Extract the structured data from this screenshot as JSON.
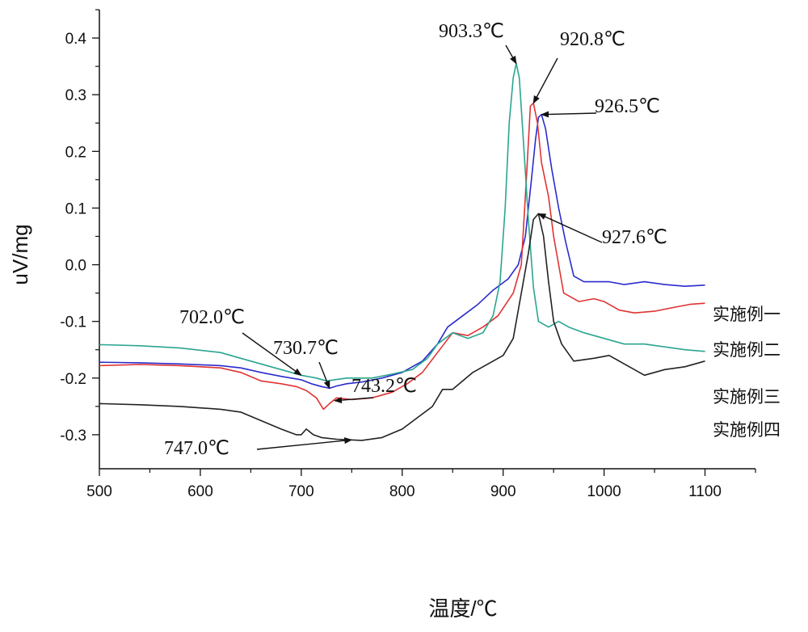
{
  "chart_data": {
    "type": "line",
    "xlabel": "温度/℃",
    "ylabel": "uV/mg",
    "xlim": [
      500,
      1150
    ],
    "ylim": [
      -0.36,
      0.45
    ],
    "x_ticks": [
      "500",
      "600",
      "700",
      "800",
      "900",
      "1000",
      "1100"
    ],
    "y_ticks": [
      "-0.3",
      "-0.2",
      "-0.1",
      "0.0",
      "0.1",
      "0.2",
      "0.3",
      "0.4"
    ],
    "x_tick_values": [
      500,
      600,
      700,
      800,
      900,
      1000,
      1100
    ],
    "y_tick_values": [
      -0.3,
      -0.2,
      -0.1,
      0.0,
      0.1,
      0.2,
      0.3,
      0.4
    ],
    "grid": false,
    "legend": "right",
    "series": [
      {
        "name": "实施例一",
        "color": "#2b2bcc",
        "points": [
          [
            500,
            -0.172
          ],
          [
            540,
            -0.173
          ],
          [
            580,
            -0.175
          ],
          [
            620,
            -0.178
          ],
          [
            640,
            -0.182
          ],
          [
            660,
            -0.19
          ],
          [
            680,
            -0.197
          ],
          [
            690,
            -0.2
          ],
          [
            700,
            -0.203
          ],
          [
            710,
            -0.21
          ],
          [
            720,
            -0.215
          ],
          [
            728,
            -0.218
          ],
          [
            735,
            -0.214
          ],
          [
            745,
            -0.21
          ],
          [
            760,
            -0.207
          ],
          [
            780,
            -0.2
          ],
          [
            800,
            -0.19
          ],
          [
            820,
            -0.17
          ],
          [
            835,
            -0.14
          ],
          [
            845,
            -0.11
          ],
          [
            860,
            -0.09
          ],
          [
            875,
            -0.07
          ],
          [
            890,
            -0.045
          ],
          [
            905,
            -0.025
          ],
          [
            915,
            0.0
          ],
          [
            922,
            0.05
          ],
          [
            928,
            0.15
          ],
          [
            932,
            0.22
          ],
          [
            935,
            0.26
          ],
          [
            938,
            0.265
          ],
          [
            942,
            0.24
          ],
          [
            948,
            0.17
          ],
          [
            955,
            0.1
          ],
          [
            962,
            0.04
          ],
          [
            970,
            -0.02
          ],
          [
            980,
            -0.03
          ],
          [
            990,
            -0.03
          ],
          [
            1005,
            -0.03
          ],
          [
            1020,
            -0.035
          ],
          [
            1040,
            -0.03
          ],
          [
            1060,
            -0.035
          ],
          [
            1080,
            -0.038
          ],
          [
            1100,
            -0.036
          ]
        ]
      },
      {
        "name": "实施例二",
        "color": "#e03333",
        "points": [
          [
            500,
            -0.178
          ],
          [
            540,
            -0.176
          ],
          [
            580,
            -0.178
          ],
          [
            620,
            -0.182
          ],
          [
            640,
            -0.19
          ],
          [
            660,
            -0.205
          ],
          [
            680,
            -0.21
          ],
          [
            695,
            -0.215
          ],
          [
            705,
            -0.222
          ],
          [
            715,
            -0.235
          ],
          [
            722,
            -0.255
          ],
          [
            728,
            -0.245
          ],
          [
            735,
            -0.235
          ],
          [
            750,
            -0.238
          ],
          [
            770,
            -0.235
          ],
          [
            790,
            -0.225
          ],
          [
            805,
            -0.21
          ],
          [
            820,
            -0.19
          ],
          [
            835,
            -0.155
          ],
          [
            850,
            -0.12
          ],
          [
            865,
            -0.125
          ],
          [
            880,
            -0.11
          ],
          [
            895,
            -0.09
          ],
          [
            910,
            -0.05
          ],
          [
            918,
            0.0
          ],
          [
            923,
            0.15
          ],
          [
            927,
            0.28
          ],
          [
            930,
            0.285
          ],
          [
            934,
            0.25
          ],
          [
            938,
            0.18
          ],
          [
            945,
            0.12
          ],
          [
            950,
            0.05
          ],
          [
            960,
            -0.05
          ],
          [
            975,
            -0.065
          ],
          [
            990,
            -0.06
          ],
          [
            1000,
            -0.065
          ],
          [
            1015,
            -0.08
          ],
          [
            1030,
            -0.085
          ],
          [
            1050,
            -0.082
          ],
          [
            1070,
            -0.075
          ],
          [
            1085,
            -0.07
          ],
          [
            1100,
            -0.068
          ]
        ]
      },
      {
        "name": "实施例三",
        "color": "#2aa590",
        "points": [
          [
            500,
            -0.141
          ],
          [
            540,
            -0.143
          ],
          [
            580,
            -0.147
          ],
          [
            620,
            -0.155
          ],
          [
            640,
            -0.165
          ],
          [
            660,
            -0.175
          ],
          [
            680,
            -0.185
          ],
          [
            700,
            -0.195
          ],
          [
            715,
            -0.2
          ],
          [
            725,
            -0.205
          ],
          [
            745,
            -0.2
          ],
          [
            770,
            -0.2
          ],
          [
            790,
            -0.193
          ],
          [
            810,
            -0.185
          ],
          [
            825,
            -0.165
          ],
          [
            835,
            -0.14
          ],
          [
            850,
            -0.12
          ],
          [
            865,
            -0.13
          ],
          [
            880,
            -0.12
          ],
          [
            890,
            -0.09
          ],
          [
            897,
            -0.03
          ],
          [
            902,
            0.1
          ],
          [
            906,
            0.25
          ],
          [
            910,
            0.33
          ],
          [
            913,
            0.355
          ],
          [
            916,
            0.33
          ],
          [
            920,
            0.22
          ],
          [
            925,
            0.08
          ],
          [
            930,
            -0.04
          ],
          [
            935,
            -0.1
          ],
          [
            945,
            -0.11
          ],
          [
            955,
            -0.1
          ],
          [
            965,
            -0.11
          ],
          [
            980,
            -0.12
          ],
          [
            1000,
            -0.13
          ],
          [
            1020,
            -0.14
          ],
          [
            1040,
            -0.14
          ],
          [
            1060,
            -0.145
          ],
          [
            1080,
            -0.15
          ],
          [
            1100,
            -0.153
          ]
        ]
      },
      {
        "name": "实施例四",
        "color": "#222222",
        "points": [
          [
            500,
            -0.245
          ],
          [
            540,
            -0.247
          ],
          [
            580,
            -0.25
          ],
          [
            620,
            -0.255
          ],
          [
            640,
            -0.26
          ],
          [
            660,
            -0.275
          ],
          [
            680,
            -0.29
          ],
          [
            695,
            -0.3
          ],
          [
            700,
            -0.3
          ],
          [
            705,
            -0.29
          ],
          [
            712,
            -0.3
          ],
          [
            720,
            -0.305
          ],
          [
            735,
            -0.308
          ],
          [
            760,
            -0.31
          ],
          [
            780,
            -0.305
          ],
          [
            800,
            -0.29
          ],
          [
            815,
            -0.27
          ],
          [
            830,
            -0.25
          ],
          [
            840,
            -0.22
          ],
          [
            850,
            -0.22
          ],
          [
            870,
            -0.19
          ],
          [
            885,
            -0.175
          ],
          [
            900,
            -0.16
          ],
          [
            910,
            -0.13
          ],
          [
            918,
            -0.05
          ],
          [
            925,
            0.02
          ],
          [
            930,
            0.08
          ],
          [
            935,
            0.09
          ],
          [
            940,
            0.05
          ],
          [
            945,
            -0.03
          ],
          [
            950,
            -0.1
          ],
          [
            958,
            -0.14
          ],
          [
            970,
            -0.17
          ],
          [
            990,
            -0.165
          ],
          [
            1005,
            -0.16
          ],
          [
            1020,
            -0.175
          ],
          [
            1040,
            -0.195
          ],
          [
            1060,
            -0.185
          ],
          [
            1080,
            -0.18
          ],
          [
            1100,
            -0.17
          ]
        ]
      }
    ],
    "annotations": [
      {
        "label": "903.3℃",
        "x": 913,
        "y": 0.355
      },
      {
        "label": "920.8℃",
        "x": 930,
        "y": 0.285
      },
      {
        "label": "926.5℃",
        "x": 938,
        "y": 0.265
      },
      {
        "label": "927.6℃",
        "x": 935,
        "y": 0.09
      },
      {
        "label": "702.0℃",
        "x": 700,
        "y": -0.195
      },
      {
        "label": "730.7℃",
        "x": 728,
        "y": -0.218
      },
      {
        "label": "743.2℃",
        "x": 733,
        "y": -0.24
      },
      {
        "label": "747.0℃",
        "x": 750,
        "y": -0.309
      }
    ]
  }
}
